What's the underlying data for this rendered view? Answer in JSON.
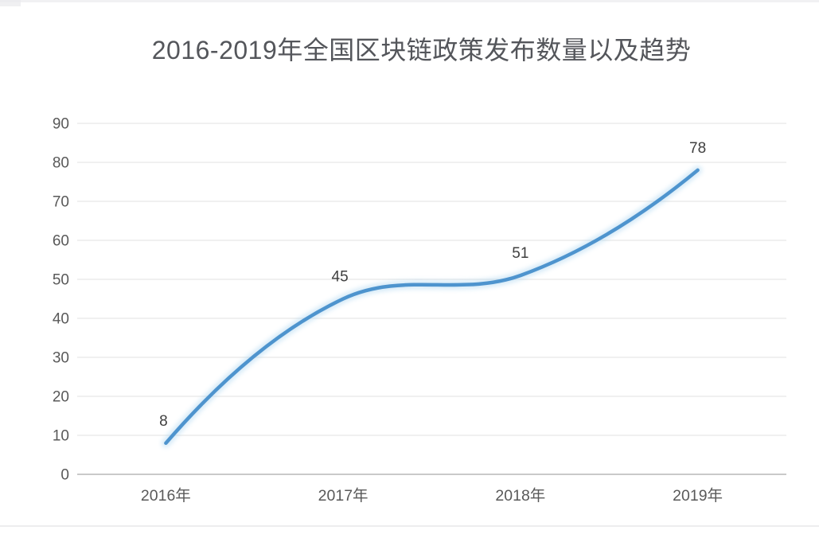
{
  "page": {
    "background_color": "#ffffff"
  },
  "chart_data": {
    "type": "line",
    "smooth": true,
    "title": "2016-2019年全国区块链政策发布数量以及趋势",
    "categories": [
      "2016年",
      "2017年",
      "2018年",
      "2019年"
    ],
    "values": [
      8,
      45,
      51,
      78
    ],
    "data_labels": [
      "8",
      "45",
      "51",
      "78"
    ],
    "xlabel": "",
    "ylabel": "",
    "ylim": [
      0,
      90
    ],
    "ytick_step": 10,
    "yticks": [
      "0",
      "10",
      "20",
      "30",
      "40",
      "50",
      "60",
      "70",
      "80",
      "90"
    ],
    "grid": true,
    "legend": null,
    "line_color": "#4e94ce",
    "glow_color": "#a5d2ef",
    "gridline_color": "#e8e8e8",
    "axis_color": "#c9c9c9",
    "tick_color": "#595959",
    "data_label_color": "#3f3f3f",
    "title_color": "#54565b"
  }
}
